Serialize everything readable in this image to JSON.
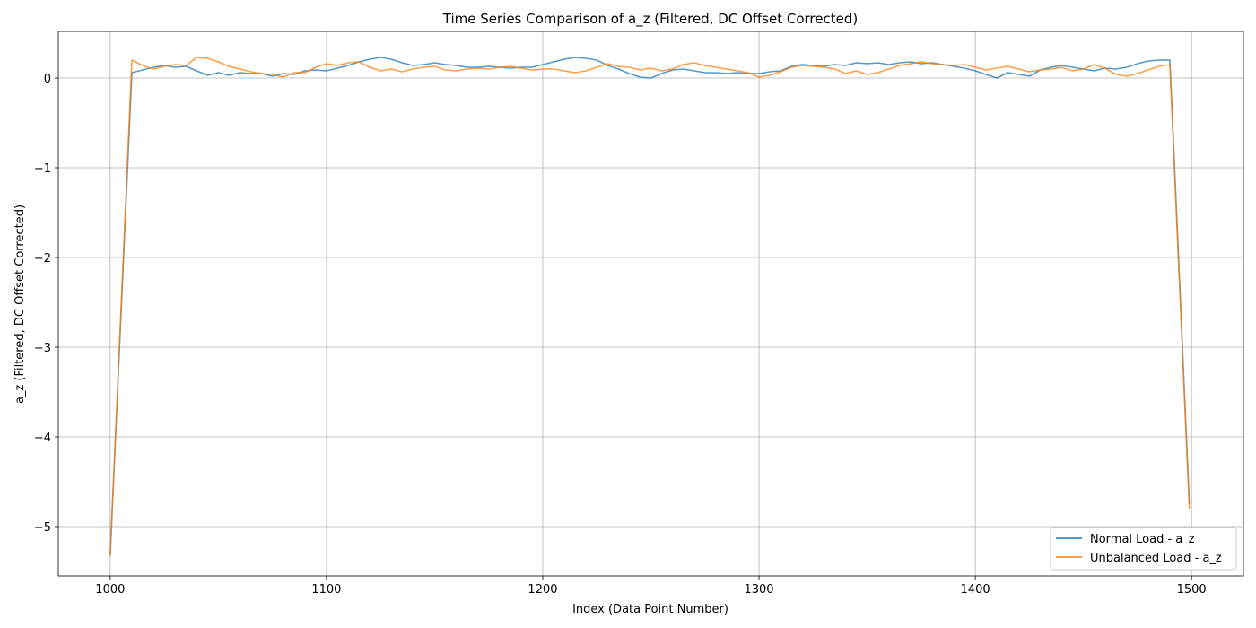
{
  "chart_data": {
    "type": "line",
    "title": "Time Series Comparison of a_z (Filtered, DC Offset Corrected)",
    "xlabel": "Index (Data Point Number)",
    "ylabel": "a_z (Filtered, DC Offset Corrected)",
    "xlim": [
      976,
      1524
    ],
    "ylim": [
      -5.55,
      0.52
    ],
    "xticks": [
      1000,
      1100,
      1200,
      1300,
      1400,
      1500
    ],
    "xtick_labels": [
      "1000",
      "1100",
      "1200",
      "1300",
      "1400",
      "1500"
    ],
    "yticks": [
      0,
      -1,
      -2,
      -3,
      -4,
      -5
    ],
    "ytick_labels": [
      "0",
      "−1",
      "−2",
      "−3",
      "−4",
      "−5"
    ],
    "grid": true,
    "legend_position": "lower-right",
    "series": [
      {
        "name": "Normal Load - a_z",
        "color": "#1f77b4",
        "points": [
          [
            1000,
            -5.3
          ],
          [
            1010,
            0.06
          ],
          [
            1015,
            0.09
          ],
          [
            1020,
            0.12
          ],
          [
            1025,
            0.14
          ],
          [
            1030,
            0.12
          ],
          [
            1035,
            0.13
          ],
          [
            1040,
            0.08
          ],
          [
            1045,
            0.03
          ],
          [
            1050,
            0.06
          ],
          [
            1055,
            0.03
          ],
          [
            1060,
            0.06
          ],
          [
            1065,
            0.05
          ],
          [
            1070,
            0.05
          ],
          [
            1075,
            0.02
          ],
          [
            1080,
            0.05
          ],
          [
            1085,
            0.04
          ],
          [
            1090,
            0.08
          ],
          [
            1095,
            0.09
          ],
          [
            1100,
            0.08
          ],
          [
            1105,
            0.11
          ],
          [
            1110,
            0.14
          ],
          [
            1115,
            0.18
          ],
          [
            1120,
            0.21
          ],
          [
            1125,
            0.23
          ],
          [
            1130,
            0.21
          ],
          [
            1135,
            0.17
          ],
          [
            1140,
            0.14
          ],
          [
            1145,
            0.15
          ],
          [
            1150,
            0.17
          ],
          [
            1155,
            0.15
          ],
          [
            1160,
            0.14
          ],
          [
            1165,
            0.12
          ],
          [
            1170,
            0.12
          ],
          [
            1175,
            0.13
          ],
          [
            1180,
            0.12
          ],
          [
            1185,
            0.11
          ],
          [
            1190,
            0.12
          ],
          [
            1195,
            0.12
          ],
          [
            1200,
            0.15
          ],
          [
            1205,
            0.18
          ],
          [
            1210,
            0.21
          ],
          [
            1215,
            0.23
          ],
          [
            1220,
            0.22
          ],
          [
            1225,
            0.2
          ],
          [
            1230,
            0.14
          ],
          [
            1235,
            0.1
          ],
          [
            1240,
            0.05
          ],
          [
            1245,
            0.01
          ],
          [
            1250,
            0.0
          ],
          [
            1255,
            0.05
          ],
          [
            1260,
            0.09
          ],
          [
            1265,
            0.1
          ],
          [
            1270,
            0.08
          ],
          [
            1275,
            0.06
          ],
          [
            1280,
            0.06
          ],
          [
            1285,
            0.05
          ],
          [
            1290,
            0.06
          ],
          [
            1295,
            0.05
          ],
          [
            1300,
            0.05
          ],
          [
            1305,
            0.07
          ],
          [
            1310,
            0.08
          ],
          [
            1315,
            0.13
          ],
          [
            1320,
            0.15
          ],
          [
            1325,
            0.14
          ],
          [
            1330,
            0.13
          ],
          [
            1335,
            0.15
          ],
          [
            1340,
            0.14
          ],
          [
            1345,
            0.17
          ],
          [
            1350,
            0.16
          ],
          [
            1355,
            0.17
          ],
          [
            1360,
            0.15
          ],
          [
            1365,
            0.17
          ],
          [
            1370,
            0.18
          ],
          [
            1375,
            0.16
          ],
          [
            1380,
            0.17
          ],
          [
            1385,
            0.15
          ],
          [
            1390,
            0.13
          ],
          [
            1395,
            0.11
          ],
          [
            1400,
            0.08
          ],
          [
            1405,
            0.04
          ],
          [
            1410,
            0.0
          ],
          [
            1415,
            0.06
          ],
          [
            1420,
            0.04
          ],
          [
            1425,
            0.02
          ],
          [
            1430,
            0.09
          ],
          [
            1435,
            0.12
          ],
          [
            1440,
            0.14
          ],
          [
            1445,
            0.12
          ],
          [
            1450,
            0.1
          ],
          [
            1455,
            0.08
          ],
          [
            1460,
            0.11
          ],
          [
            1465,
            0.1
          ],
          [
            1470,
            0.12
          ],
          [
            1475,
            0.16
          ],
          [
            1480,
            0.19
          ],
          [
            1485,
            0.2
          ],
          [
            1490,
            0.2
          ],
          [
            1499,
            -4.75
          ]
        ]
      },
      {
        "name": "Unbalanced Load - a_z",
        "color": "#ff7f0e",
        "points": [
          [
            1000,
            -5.33
          ],
          [
            1010,
            0.2
          ],
          [
            1015,
            0.14
          ],
          [
            1020,
            0.1
          ],
          [
            1025,
            0.13
          ],
          [
            1030,
            0.15
          ],
          [
            1035,
            0.14
          ],
          [
            1040,
            0.23
          ],
          [
            1045,
            0.22
          ],
          [
            1050,
            0.18
          ],
          [
            1055,
            0.13
          ],
          [
            1060,
            0.1
          ],
          [
            1065,
            0.07
          ],
          [
            1070,
            0.05
          ],
          [
            1075,
            0.04
          ],
          [
            1080,
            0.01
          ],
          [
            1085,
            0.06
          ],
          [
            1090,
            0.06
          ],
          [
            1095,
            0.12
          ],
          [
            1100,
            0.16
          ],
          [
            1105,
            0.14
          ],
          [
            1110,
            0.17
          ],
          [
            1115,
            0.18
          ],
          [
            1120,
            0.12
          ],
          [
            1125,
            0.08
          ],
          [
            1130,
            0.1
          ],
          [
            1135,
            0.07
          ],
          [
            1140,
            0.1
          ],
          [
            1145,
            0.12
          ],
          [
            1150,
            0.13
          ],
          [
            1155,
            0.09
          ],
          [
            1160,
            0.08
          ],
          [
            1165,
            0.1
          ],
          [
            1170,
            0.11
          ],
          [
            1175,
            0.1
          ],
          [
            1180,
            0.12
          ],
          [
            1185,
            0.13
          ],
          [
            1190,
            0.11
          ],
          [
            1195,
            0.09
          ],
          [
            1200,
            0.1
          ],
          [
            1205,
            0.1
          ],
          [
            1210,
            0.08
          ],
          [
            1215,
            0.06
          ],
          [
            1220,
            0.08
          ],
          [
            1225,
            0.12
          ],
          [
            1230,
            0.16
          ],
          [
            1235,
            0.13
          ],
          [
            1240,
            0.12
          ],
          [
            1245,
            0.09
          ],
          [
            1250,
            0.11
          ],
          [
            1255,
            0.08
          ],
          [
            1260,
            0.1
          ],
          [
            1265,
            0.15
          ],
          [
            1270,
            0.17
          ],
          [
            1275,
            0.14
          ],
          [
            1280,
            0.12
          ],
          [
            1285,
            0.1
          ],
          [
            1290,
            0.08
          ],
          [
            1295,
            0.06
          ],
          [
            1300,
            0.01
          ],
          [
            1305,
            0.03
          ],
          [
            1310,
            0.07
          ],
          [
            1315,
            0.12
          ],
          [
            1320,
            0.14
          ],
          [
            1325,
            0.13
          ],
          [
            1330,
            0.12
          ],
          [
            1335,
            0.1
          ],
          [
            1340,
            0.05
          ],
          [
            1345,
            0.08
          ],
          [
            1350,
            0.04
          ],
          [
            1355,
            0.06
          ],
          [
            1360,
            0.1
          ],
          [
            1365,
            0.14
          ],
          [
            1370,
            0.16
          ],
          [
            1375,
            0.18
          ],
          [
            1380,
            0.16
          ],
          [
            1385,
            0.15
          ],
          [
            1390,
            0.14
          ],
          [
            1395,
            0.15
          ],
          [
            1400,
            0.12
          ],
          [
            1405,
            0.09
          ],
          [
            1410,
            0.11
          ],
          [
            1415,
            0.13
          ],
          [
            1420,
            0.1
          ],
          [
            1425,
            0.07
          ],
          [
            1430,
            0.09
          ],
          [
            1435,
            0.1
          ],
          [
            1440,
            0.12
          ],
          [
            1445,
            0.08
          ],
          [
            1450,
            0.1
          ],
          [
            1455,
            0.15
          ],
          [
            1460,
            0.11
          ],
          [
            1465,
            0.04
          ],
          [
            1470,
            0.02
          ],
          [
            1475,
            0.05
          ],
          [
            1480,
            0.09
          ],
          [
            1485,
            0.13
          ],
          [
            1490,
            0.15
          ],
          [
            1499,
            -4.8
          ]
        ]
      }
    ]
  }
}
